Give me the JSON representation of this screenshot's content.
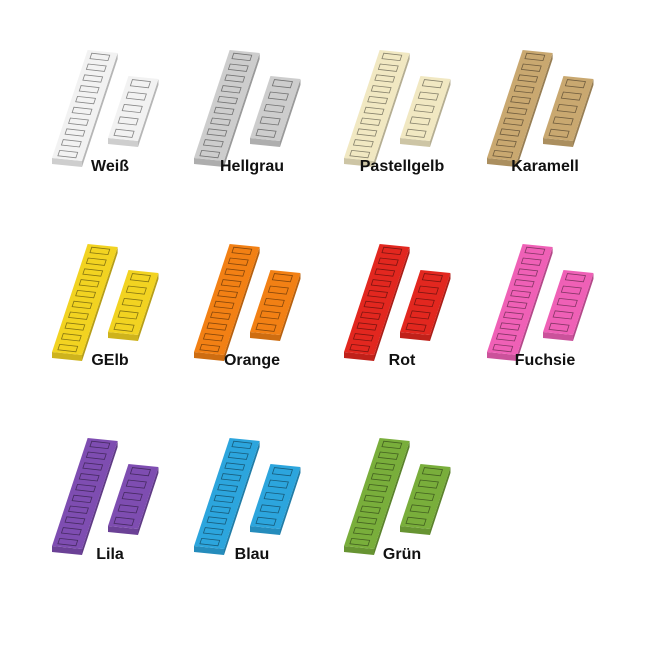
{
  "variants": [
    {
      "label": "Weiß",
      "color": "#f2f2f2"
    },
    {
      "label": "Hellgrau",
      "color": "#cdcdcd"
    },
    {
      "label": "Pastellgelb",
      "color": "#f1e8c2"
    },
    {
      "label": "Karamell",
      "color": "#c9a870"
    },
    {
      "label": "GElb",
      "color": "#f2d321"
    },
    {
      "label": "Orange",
      "color": "#f28014"
    },
    {
      "label": "Rot",
      "color": "#e2271f"
    },
    {
      "label": "Fuchsie",
      "color": "#ef60b6"
    },
    {
      "label": "Lila",
      "color": "#7e4db1"
    },
    {
      "label": "Blau",
      "color": "#2ca5dd"
    },
    {
      "label": "Grün",
      "color": "#79ae3b"
    }
  ]
}
